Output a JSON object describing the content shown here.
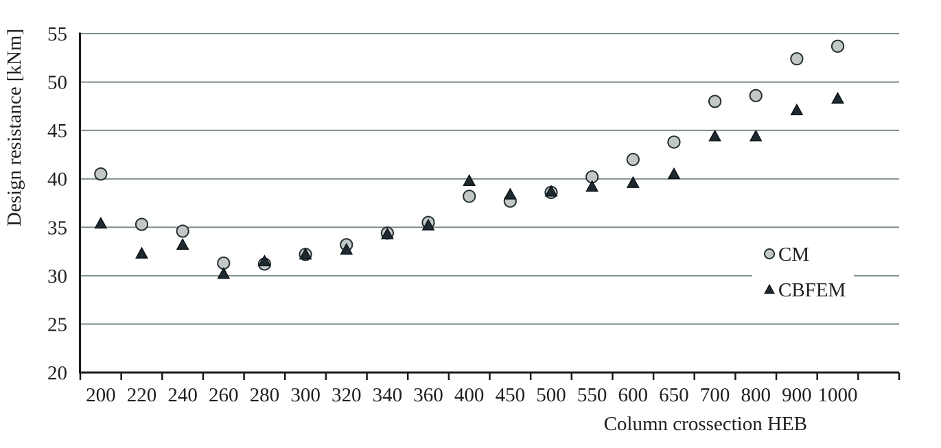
{
  "chart_data": {
    "type": "scatter",
    "title": "",
    "xlabel": "Column crossection HEB",
    "ylabel": "Design resistance [kNm]",
    "categories": [
      "200",
      "220",
      "240",
      "260",
      "280",
      "300",
      "320",
      "340",
      "360",
      "400",
      "450",
      "500",
      "550",
      "600",
      "650",
      "700",
      "800",
      "900",
      "1000"
    ],
    "ylim": [
      20,
      55
    ],
    "yticks": [
      20,
      25,
      30,
      35,
      40,
      45,
      50,
      55
    ],
    "grid": "horizontal-only",
    "legend_position": "inside-right",
    "series": [
      {
        "name": "CM",
        "marker": "circle",
        "marker_fill": "#c2c8c6",
        "marker_stroke": "#232e33",
        "values": [
          40.5,
          35.3,
          34.6,
          31.3,
          31.2,
          32.2,
          33.2,
          34.4,
          35.5,
          38.2,
          37.7,
          38.6,
          40.2,
          42.0,
          43.8,
          48.0,
          48.6,
          52.4,
          53.7
        ]
      },
      {
        "name": "CBFEM",
        "marker": "triangle",
        "marker_fill": "#1e2930",
        "marker_stroke": "#0d1418",
        "values": [
          35.4,
          32.3,
          33.2,
          30.2,
          31.5,
          32.2,
          32.7,
          34.3,
          35.2,
          39.8,
          38.4,
          38.7,
          39.2,
          39.6,
          40.5,
          44.4,
          44.4,
          47.1,
          48.3
        ]
      }
    ],
    "colors": {
      "gridline": "#7e8e8a",
      "axis": "#1a1a1a",
      "text": "#1f1f1f",
      "plot_background": "#ffffff",
      "legend_background": "#ffffff"
    }
  }
}
